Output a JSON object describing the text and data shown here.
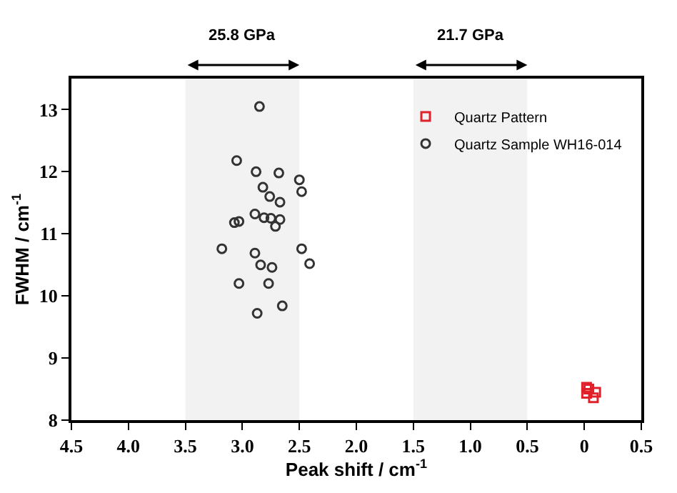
{
  "chart_data": {
    "type": "scatter",
    "xlabel": "Peak shift / cm$^{-1}$",
    "ylabel": "FWHM / cm$^{-1}$",
    "xlim": [
      4.5,
      -0.5
    ],
    "xticks": [
      4.5,
      {
        "value": 4,
        "label": "4.0"
      },
      3.5,
      {
        "value": 3,
        "label": "3.0"
      },
      2.5,
      {
        "value": 2,
        "label": "2.0"
      },
      1.5,
      {
        "value": 1,
        "label": "1.0"
      },
      0.5,
      0,
      {
        "value": -0.5,
        "label": "0.5"
      }
    ],
    "ylim": [
      8,
      13.5
    ],
    "yticks": [
      8,
      9,
      10,
      11,
      12,
      13
    ],
    "grid": false,
    "legend": "top right",
    "bands": [
      {
        "axis": "x",
        "from": 3.5,
        "to": 2.5,
        "label": "25.8 GPa",
        "color": "#f2f2f2"
      },
      {
        "axis": "x",
        "from": 1.5,
        "to": 0.5,
        "label": "21.7 GPa",
        "color": "#f2f2f2"
      }
    ],
    "series": [
      {
        "name": "Quartz Pattern",
        "color": "#e0202a",
        "marker": "square",
        "x": [
          -0.02,
          -0.04,
          -0.02,
          -0.1,
          -0.08
        ],
        "values": [
          8.53,
          8.5,
          8.43,
          8.45,
          8.36
        ]
      },
      {
        "name": "Quartz Sample WH16-014",
        "color": "#333333",
        "marker": "circle",
        "x": [
          2.85,
          3.05,
          2.88,
          2.68,
          2.5,
          2.48,
          2.82,
          2.76,
          2.67,
          2.89,
          2.81,
          2.75,
          2.67,
          2.71,
          3.07,
          3.03,
          3.18,
          2.89,
          2.48,
          2.41,
          2.84,
          2.74,
          3.03,
          2.77,
          2.65,
          2.87
        ],
        "values": [
          13.05,
          12.18,
          12.0,
          11.98,
          11.87,
          11.68,
          11.75,
          11.6,
          11.51,
          11.32,
          11.26,
          11.25,
          11.23,
          11.12,
          11.18,
          11.2,
          10.76,
          10.69,
          10.76,
          10.52,
          10.5,
          10.46,
          10.2,
          10.2,
          9.84,
          9.72
        ]
      }
    ]
  }
}
